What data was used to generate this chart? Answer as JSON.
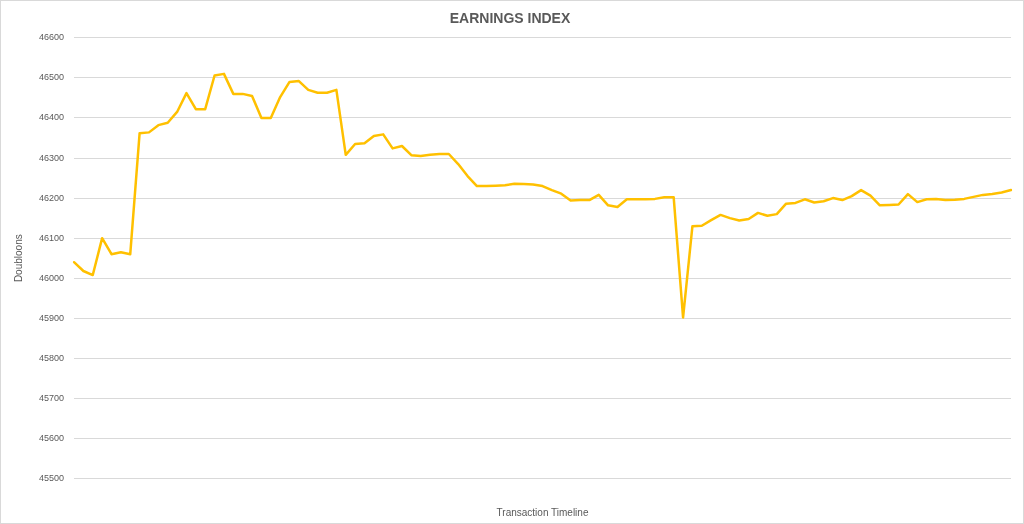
{
  "chart_data": {
    "type": "line",
    "title": "EARNINGS INDEX",
    "xlabel": "Transaction Timeline",
    "ylabel": "Doubloons",
    "categories": [
      null,
      null,
      null,
      null,
      null,
      null,
      null,
      null,
      null,
      null,
      null,
      null,
      null,
      null,
      null,
      null,
      null,
      null,
      null,
      null,
      null,
      null,
      null,
      null,
      null,
      null,
      null,
      null,
      null,
      null,
      null,
      null,
      null,
      null,
      null,
      null,
      null,
      null,
      null,
      null,
      null,
      null,
      null,
      null,
      null,
      null,
      null,
      null,
      null,
      null,
      null,
      null,
      null,
      null,
      null,
      null,
      null,
      null,
      null,
      null,
      null,
      null,
      null,
      null,
      null,
      null,
      null,
      null,
      null,
      null,
      null,
      null,
      null,
      null,
      null,
      null,
      null,
      null,
      null,
      null,
      null,
      null,
      null,
      null,
      null,
      null,
      null,
      null,
      null,
      null,
      null,
      null,
      null,
      null,
      null,
      null,
      null,
      null,
      null,
      null,
      null
    ],
    "series": [
      {
        "color": "#ffc000",
        "values": [
          46040,
          46018,
          46008,
          46100,
          46060,
          46065,
          46060,
          46362,
          46364,
          46382,
          46388,
          46415,
          46462,
          46422,
          46422,
          46506,
          46510,
          46460,
          46460,
          46455,
          46400,
          46400,
          46452,
          46490,
          46492,
          46470,
          46463,
          46463,
          46470,
          46308,
          46335,
          46337,
          46355,
          46359,
          46324,
          46330,
          46307,
          46305,
          46308,
          46310,
          46310,
          46285,
          46255,
          46230,
          46230,
          46231,
          46232,
          46236,
          46235,
          46234,
          46230,
          46220,
          46211,
          46194,
          46195,
          46195,
          46208,
          46182,
          46178,
          46197,
          46197,
          46197,
          46198,
          46202,
          46202,
          45902,
          46130,
          46131,
          46145,
          46158,
          46150,
          46144,
          46148,
          46163,
          46156,
          46160,
          46186,
          46188,
          46197,
          46189,
          46192,
          46200,
          46195,
          46205,
          46220,
          46206,
          46182,
          46183,
          46184,
          46210,
          46190,
          46197,
          46198,
          46195,
          46196,
          46198,
          46203,
          46208,
          46210,
          46214,
          46220
        ]
      }
    ],
    "ylim": [
      45500,
      46600
    ],
    "yticks": [
      45500,
      45600,
      45700,
      45800,
      45900,
      46000,
      46100,
      46200,
      46300,
      46400,
      46500,
      46600
    ],
    "grid": "y",
    "legend": false,
    "marker": "none",
    "line_style": "solid"
  }
}
